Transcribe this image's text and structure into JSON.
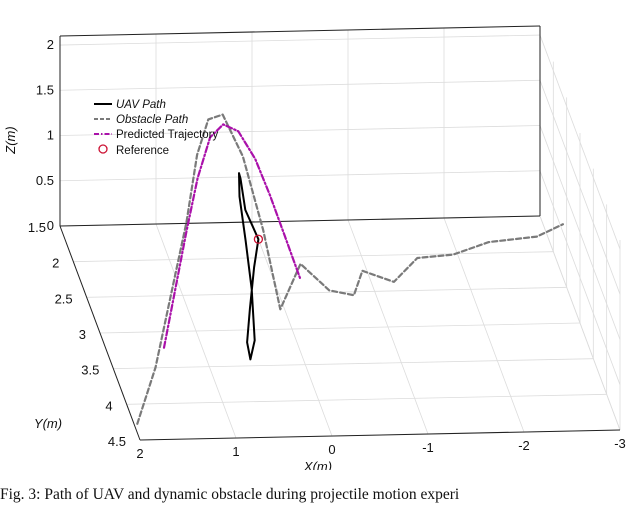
{
  "chart_data": {
    "type": "line",
    "title": "",
    "xlabel": "X(m)",
    "ylabel": "Y(m)",
    "zlabel": "Z(m)",
    "x_ticks": [
      "2",
      "1",
      "0",
      "-1",
      "-2",
      "-3"
    ],
    "y_ticks": [
      "1.5",
      "2",
      "2.5",
      "3",
      "3.5",
      "4",
      "4.5"
    ],
    "z_ticks": [
      "0",
      "0.5",
      "1",
      "1.5",
      "2"
    ],
    "xlim": [
      2,
      -3
    ],
    "ylim": [
      1.5,
      4.5
    ],
    "zlim": [
      0,
      2.1
    ],
    "grid": true,
    "legend_position": "top-left",
    "series": [
      {
        "name": "UAV Path",
        "style": "solid",
        "color": "#000000",
        "x": [
          0.35,
          0.45,
          0.55,
          0.62,
          0.6,
          0.5,
          0.42,
          0.4,
          0.38,
          0.33,
          0.3,
          0.32,
          0.35
        ],
        "y": [
          3.0,
          3.2,
          3.4,
          3.55,
          3.6,
          3.4,
          3.0,
          2.7,
          2.4,
          2.2,
          2.15,
          2.4,
          3.0
        ],
        "z": [
          1.0,
          0.85,
          0.55,
          0.3,
          0.15,
          0.2,
          0.45,
          0.75,
          1.0,
          1.1,
          1.0,
          0.85,
          1.0
        ]
      },
      {
        "name": "Obstacle Path",
        "style": "dashed",
        "color": "#7a7a7a",
        "x": [
          2.0,
          1.7,
          1.4,
          1.1,
          0.85,
          0.65,
          0.5,
          0.4,
          0.3,
          0.15,
          -0.2,
          -0.5,
          -0.7,
          -0.9,
          -1.2,
          -1.5,
          -1.9,
          -2.3,
          -2.8,
          -3.1
        ],
        "y": [
          4.4,
          4.0,
          3.5,
          3.0,
          2.5,
          2.2,
          2.2,
          2.6,
          3.0,
          3.1,
          2.6,
          2.6,
          2.8,
          2.4,
          2.5,
          2.3,
          2.2,
          2.1,
          2.1,
          2.0
        ],
        "z": [
          0.1,
          0.4,
          0.8,
          1.2,
          1.55,
          1.7,
          1.75,
          1.6,
          1.1,
          0.3,
          0.4,
          0.1,
          0.2,
          0.15,
          0.1,
          0.2,
          0.15,
          0.2,
          0.25,
          0.3
        ]
      },
      {
        "name": "Predicted Trajectory",
        "style": "dashdot",
        "color": "#aa11aa",
        "x": [
          1.5,
          1.3,
          1.1,
          0.9,
          0.7,
          0.55,
          0.42,
          0.3,
          0.2,
          0.1,
          0.0
        ],
        "y": [
          3.6,
          3.3,
          3.0,
          2.7,
          2.45,
          2.4,
          2.5,
          2.7,
          2.9,
          3.1,
          3.3
        ],
        "z": [
          0.3,
          0.7,
          1.1,
          1.45,
          1.7,
          1.8,
          1.8,
          1.65,
          1.4,
          1.1,
          0.8
        ]
      }
    ],
    "reference": {
      "name": "Reference",
      "x": 0.35,
      "y": 3.0,
      "z": 1.0,
      "color": "#cc1133"
    }
  },
  "caption": "Fig. 3: Path of UAV and dynamic obstacle during projectile motion experi"
}
